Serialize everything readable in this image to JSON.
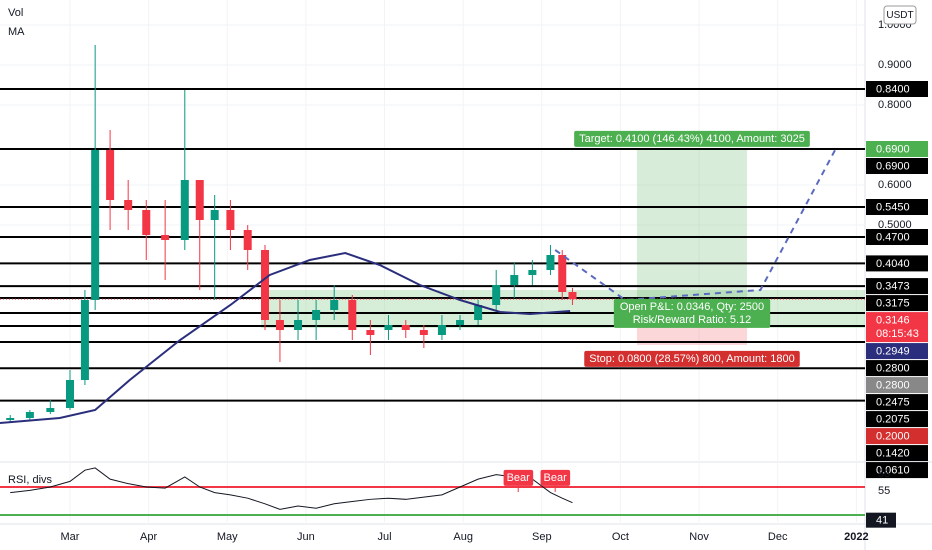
{
  "chart_data": {
    "type": "candlestick",
    "legend": [
      "Vol",
      "MA"
    ],
    "currency": "USDT",
    "xlim": [
      0.11,
      11.11
    ],
    "xticks": [
      {
        "value": 1,
        "label": "Mar"
      },
      {
        "value": 2,
        "label": "Apr"
      },
      {
        "value": 3,
        "label": "May"
      },
      {
        "value": 4,
        "label": "Jun"
      },
      {
        "value": 5,
        "label": "Jul"
      },
      {
        "value": 6,
        "label": "Aug"
      },
      {
        "value": 7,
        "label": "Sep"
      },
      {
        "value": 8,
        "label": "Oct"
      },
      {
        "value": 9,
        "label": "Nov"
      },
      {
        "value": 10,
        "label": "Dec"
      },
      {
        "value": 11,
        "label": "2022"
      }
    ],
    "ylim": [
      -0.0875,
      1.0625
    ],
    "yticks": [
      {
        "value": 1.0,
        "label": "1.0000"
      },
      {
        "value": 0.9,
        "label": "0.9000"
      },
      {
        "value": 0.8,
        "label": "0.8000"
      },
      {
        "value": 0.6,
        "label": "0.6000"
      },
      {
        "value": 0.5,
        "label": "0.5000"
      }
    ],
    "up_color": "#089981",
    "down_color": "#f23645",
    "x": [
      0.24,
      0.49,
      0.75,
      1.0,
      1.19,
      1.32,
      1.51,
      1.74,
      1.97,
      2.21,
      2.46,
      2.65,
      2.84,
      3.04,
      3.26,
      3.48,
      3.67,
      3.9,
      4.13,
      4.36,
      4.59,
      4.82,
      5.05,
      5.27,
      5.5,
      5.73,
      5.96,
      6.19,
      6.42,
      6.65,
      6.88,
      7.11,
      7.26,
      7.39
    ],
    "open": [
      0.0125,
      0.0175,
      0.0325,
      0.0425,
      0.1125,
      0.3125,
      0.6875,
      0.5625,
      0.5375,
      0.475,
      0.4625,
      0.6125,
      0.5125,
      0.5375,
      0.4875,
      0.4375,
      0.2625,
      0.2375,
      0.2625,
      0.2875,
      0.3125,
      0.2375,
      0.2375,
      0.25,
      0.2375,
      0.225,
      0.25,
      0.2625,
      0.3,
      0.35,
      0.375,
      0.3875,
      0.425,
      0.3325
    ],
    "high": [
      0.025,
      0.0375,
      0.0625,
      0.1375,
      0.3375,
      0.95,
      0.7375,
      0.6125,
      0.5625,
      0.5625,
      0.8375,
      0.6125,
      0.575,
      0.5625,
      0.5,
      0.45,
      0.3125,
      0.3125,
      0.3125,
      0.35,
      0.325,
      0.2625,
      0.275,
      0.2625,
      0.25,
      0.275,
      0.275,
      0.3125,
      0.3875,
      0.4075,
      0.4125,
      0.45,
      0.4375,
      0.3425
    ],
    "low": [
      0.0075,
      0.0125,
      0.0275,
      0.0375,
      0.1,
      0.2875,
      0.4875,
      0.4875,
      0.4125,
      0.3625,
      0.4375,
      0.3375,
      0.3125,
      0.4375,
      0.3875,
      0.2375,
      0.1575,
      0.2125,
      0.2125,
      0.2625,
      0.2125,
      0.175,
      0.2125,
      0.2175,
      0.1925,
      0.2125,
      0.2375,
      0.25,
      0.2875,
      0.3175,
      0.35,
      0.375,
      0.3125,
      0.3
    ],
    "close": [
      0.0175,
      0.0325,
      0.0425,
      0.1125,
      0.3125,
      0.6875,
      0.5625,
      0.5375,
      0.475,
      0.4625,
      0.6125,
      0.5125,
      0.5375,
      0.4875,
      0.4375,
      0.2625,
      0.2375,
      0.2625,
      0.2875,
      0.3125,
      0.2375,
      0.225,
      0.25,
      0.2375,
      0.225,
      0.25,
      0.2625,
      0.3,
      0.35,
      0.375,
      0.3875,
      0.425,
      0.3325,
      0.3146
    ],
    "ma": {
      "color": "#2a2e7c",
      "x": [
        0.11,
        0.87,
        1.32,
        1.76,
        2.4,
        3.04,
        3.54,
        4.05,
        4.5,
        4.94,
        5.45,
        5.96,
        6.47,
        6.85,
        7.36
      ],
      "y": [
        0.005,
        0.0175,
        0.0375,
        0.1125,
        0.2125,
        0.3,
        0.375,
        0.4125,
        0.43,
        0.4,
        0.35,
        0.3125,
        0.2825,
        0.2775,
        0.285
      ]
    },
    "projection": {
      "color": "#5b6abf",
      "x": [
        7.17,
        8.06,
        9.78,
        10.73
      ],
      "y": [
        0.4375,
        0.3125,
        0.3375,
        0.6875
      ]
    },
    "zone": {
      "start": 3.43,
      "high": 0.3375,
      "low": 0.2425,
      "color": "#a5d6a7"
    },
    "position": {
      "start": 8.21,
      "end": 9.61,
      "entry": 0.28,
      "target": 0.69,
      "stop": 0.2,
      "target_text": "Target: 0.4100 (146.43%) 4100, Amount: 3025",
      "pnl_text": "Open P&L: 0.0346, Qty: 2500",
      "ratio_text": "Risk/Reward Ratio: 5.12",
      "stop_text": "Stop: 0.0800 (28.57%) 800, Amount: 1800"
    },
    "price_labels": [
      {
        "value": 0.84,
        "label": "0.8400",
        "kind": "level"
      },
      {
        "value": 0.69,
        "label": "0.6900",
        "kind": "target"
      },
      {
        "value": 0.69,
        "label": "0.6900",
        "kind": "level"
      },
      {
        "value": 0.545,
        "label": "0.5450",
        "kind": "level"
      },
      {
        "value": 0.47,
        "label": "0.4700",
        "kind": "level"
      },
      {
        "value": 0.404,
        "label": "0.4040",
        "kind": "level"
      },
      {
        "value": 0.3473,
        "label": "0.3473",
        "kind": "level"
      },
      {
        "value": 0.3175,
        "label": "0.3175",
        "kind": "level"
      },
      {
        "value": 0.3146,
        "label": "0.3146",
        "kind": "price",
        "timer": "08:15:43"
      },
      {
        "value": 0.2949,
        "label": "0.2949",
        "kind": "ma"
      },
      {
        "value": 0.28,
        "label": "0.2800",
        "kind": "level"
      },
      {
        "value": 0.28,
        "label": "0.2800",
        "kind": "entry"
      },
      {
        "value": 0.2475,
        "label": "0.2475",
        "kind": "level"
      },
      {
        "value": 0.2075,
        "label": "0.2075",
        "kind": "level"
      },
      {
        "value": 0.2,
        "label": "0.2000",
        "kind": "stop"
      },
      {
        "value": 0.142,
        "label": "0.1420",
        "kind": "level"
      },
      {
        "value": 0.061,
        "label": "0.0610",
        "kind": "level"
      }
    ],
    "rsi": {
      "title": "RSI, divs",
      "ylim": [
        23.75,
        77.3
      ],
      "yticks": [
        55
      ],
      "values": [
        50,
        52,
        55,
        60,
        70,
        72,
        62,
        58,
        55,
        54,
        64,
        55,
        50,
        48,
        45,
        40,
        35,
        38,
        36,
        40,
        42,
        44,
        45,
        44,
        46,
        48,
        55,
        62,
        66,
        64,
        62,
        50,
        45,
        41
      ],
      "last": 41,
      "levels": [
        {
          "value": 55,
          "color": "#f23645"
        },
        {
          "value": 30,
          "color": "#4caf50"
        }
      ],
      "bears": [
        {
          "x": 6.7,
          "label": "Bear"
        },
        {
          "x": 7.17,
          "label": "Bear"
        }
      ]
    }
  }
}
